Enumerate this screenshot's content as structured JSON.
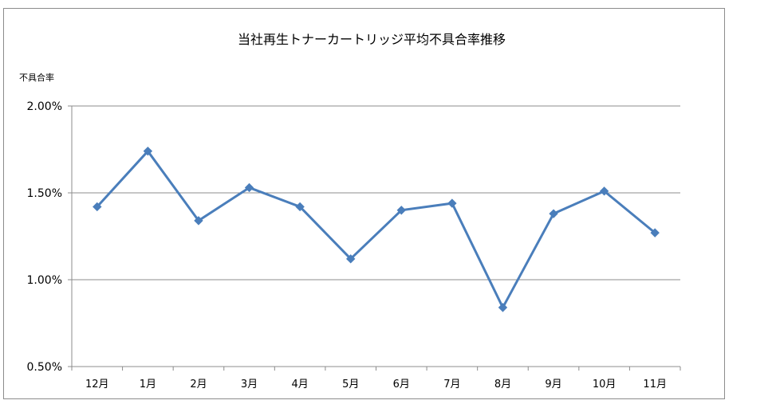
{
  "chart_data": {
    "type": "line",
    "title": "当社再生トナーカートリッジ平均不具合率推移",
    "ylabel": "不具合率",
    "xlabel": "",
    "categories": [
      "12月",
      "1月",
      "2月",
      "3月",
      "4月",
      "5月",
      "6月",
      "7月",
      "8月",
      "9月",
      "10月",
      "11月"
    ],
    "series": [
      {
        "values": [
          1.42,
          1.74,
          1.34,
          1.53,
          1.42,
          1.12,
          1.4,
          1.44,
          0.84,
          1.38,
          1.51,
          1.27
        ],
        "color": "#4a7ebb",
        "marker": "diamond"
      }
    ],
    "ylim": [
      0.5,
      2.0
    ],
    "yticks": [
      0.5,
      1.0,
      1.5,
      2.0
    ],
    "ytick_labels": [
      "0.50%",
      "1.00%",
      "1.50%",
      "2.00%"
    ],
    "grid": true,
    "legend": "none"
  }
}
